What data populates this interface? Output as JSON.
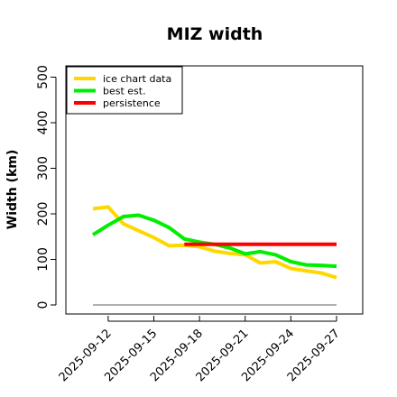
{
  "chart_data": {
    "type": "line",
    "title": "MIZ width",
    "xlabel": "",
    "ylabel": "Width (km)",
    "xlim": [
      "2025-09-10",
      "2025-09-27"
    ],
    "ylim": [
      -10,
      520
    ],
    "yticks": [
      0,
      100,
      200,
      300,
      400,
      500
    ],
    "xticks": [
      "2025-09-12",
      "2025-09-15",
      "2025-09-18",
      "2025-09-21",
      "2025-09-24",
      "2025-09-27"
    ],
    "grid": false,
    "legend_position": "top-left",
    "series": [
      {
        "name": "ice chart data",
        "color": "#FFD700",
        "x": [
          "2025-09-11",
          "2025-09-12",
          "2025-09-13",
          "2025-09-14",
          "2025-09-15",
          "2025-09-16",
          "2025-09-17",
          "2025-09-18",
          "2025-09-19",
          "2025-09-20",
          "2025-09-21",
          "2025-09-22",
          "2025-09-23",
          "2025-09-24",
          "2025-09-25",
          "2025-09-26",
          "2025-09-27"
        ],
        "y": [
          211,
          215,
          178,
          163,
          148,
          130,
          131,
          128,
          118,
          113,
          110,
          92,
          95,
          80,
          75,
          70,
          60
        ]
      },
      {
        "name": "best est.",
        "color": "#00EE00",
        "x": [
          "2025-09-11",
          "2025-09-12",
          "2025-09-13",
          "2025-09-14",
          "2025-09-15",
          "2025-09-16",
          "2025-09-17",
          "2025-09-18",
          "2025-09-19",
          "2025-09-20",
          "2025-09-21",
          "2025-09-22",
          "2025-09-23",
          "2025-09-24",
          "2025-09-25",
          "2025-09-26",
          "2025-09-27"
        ],
        "y": [
          154,
          175,
          194,
          197,
          186,
          170,
          145,
          138,
          133,
          125,
          112,
          117,
          110,
          95,
          88,
          87,
          85
        ]
      },
      {
        "name": "persistence",
        "color": "#FF0000",
        "x": [
          "2025-09-17",
          "2025-09-27"
        ],
        "y": [
          133,
          133
        ]
      }
    ],
    "reference_line": {
      "color": "#808080",
      "x": [
        "2025-09-11",
        "2025-09-27"
      ],
      "y": [
        0,
        0
      ]
    }
  }
}
